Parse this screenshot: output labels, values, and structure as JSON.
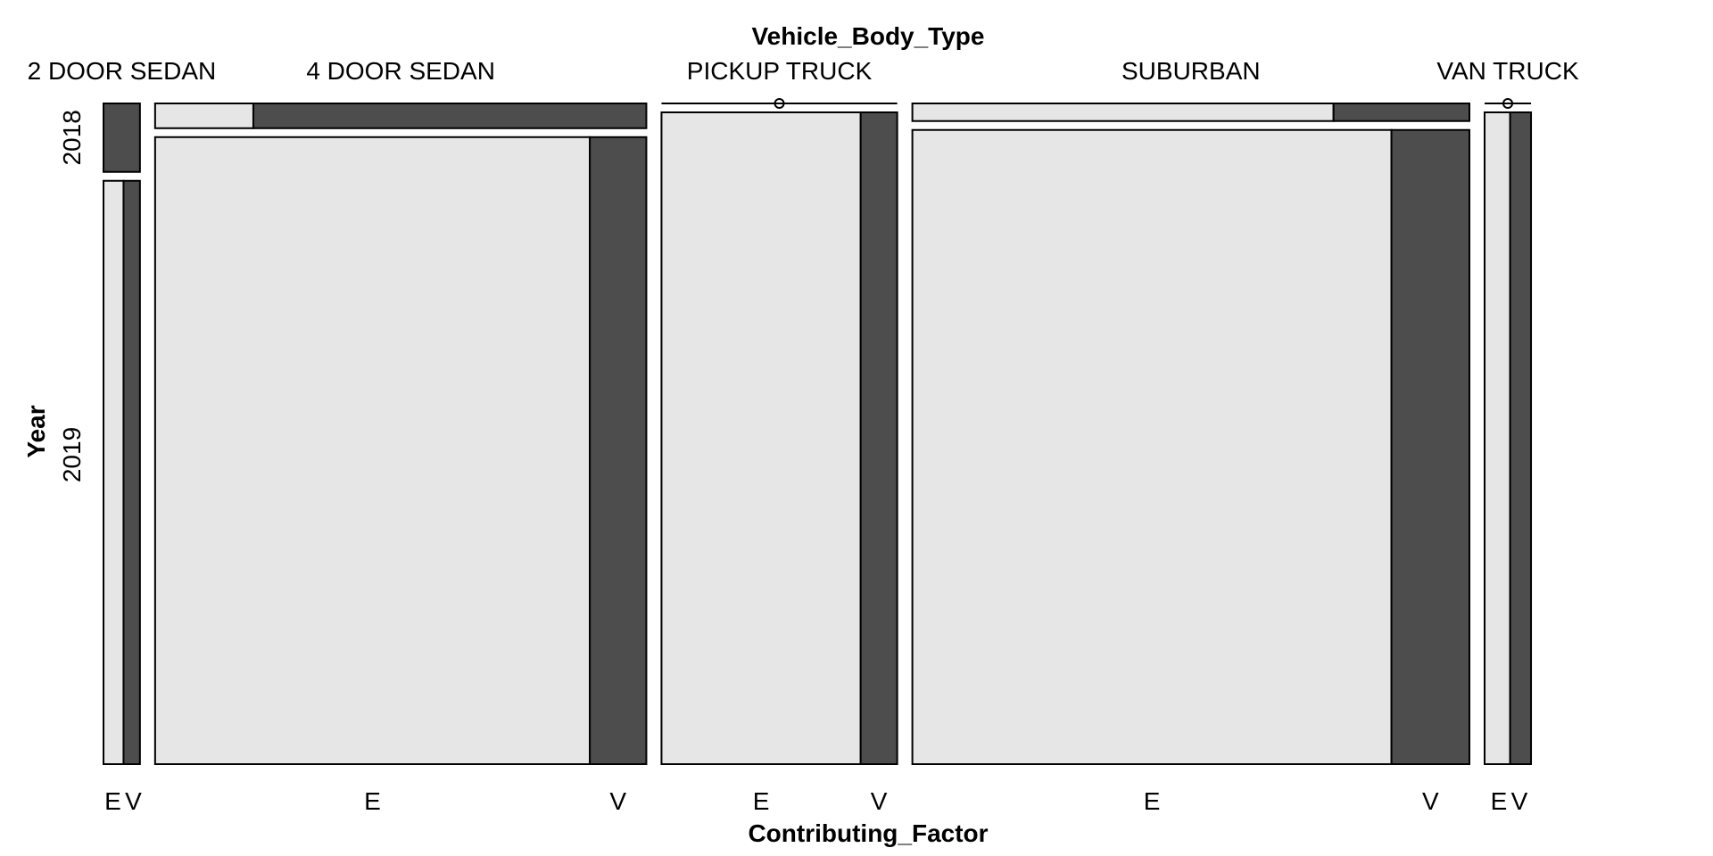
{
  "chart_data": {
    "type": "mosaic",
    "title": "Vehicle_Body_Type",
    "xlabel": "Contributing_Factor",
    "ylabel": "Year",
    "column_variable": "Vehicle_Body_Type",
    "row_variable": "Year",
    "fill_variable": "Contributing_Factor",
    "columns": [
      "2 DOOR SEDAN",
      "4 DOOR SEDAN",
      "PICKUP TRUCK",
      "SUBURBAN",
      "VAN TRUCK"
    ],
    "rows": [
      "2018",
      "2019"
    ],
    "fill_levels": [
      "E",
      "V"
    ],
    "colors": {
      "E": "#e6e6e6",
      "V": "#4d4d4d"
    },
    "column_shares": [
      0.0248,
      0.3343,
      0.1604,
      0.3791,
      0.0316
    ],
    "cells": [
      {
        "column": "2 DOOR SEDAN",
        "year": "2018",
        "row_share": 0.105,
        "e_share": 0.0,
        "bottom_ticks": []
      },
      {
        "column": "2 DOOR SEDAN",
        "year": "2019",
        "row_share": 0.895,
        "e_share": 0.55,
        "bottom_ticks": [
          "E",
          "V"
        ]
      },
      {
        "column": "4 DOOR SEDAN",
        "year": "2018",
        "row_share": 0.038,
        "e_share": 0.2,
        "bottom_ticks": []
      },
      {
        "column": "4 DOOR SEDAN",
        "year": "2019",
        "row_share": 0.962,
        "e_share": 0.885,
        "bottom_ticks": [
          "E",
          "V"
        ]
      },
      {
        "column": "PICKUP TRUCK",
        "year": "2018",
        "row_share": 0.0,
        "e_share": 0.5,
        "bottom_ticks": []
      },
      {
        "column": "PICKUP TRUCK",
        "year": "2019",
        "row_share": 1.0,
        "e_share": 0.845,
        "bottom_ticks": [
          "E",
          "V"
        ]
      },
      {
        "column": "SUBURBAN",
        "year": "2018",
        "row_share": 0.027,
        "e_share": 0.756,
        "bottom_ticks": []
      },
      {
        "column": "SUBURBAN",
        "year": "2019",
        "row_share": 0.973,
        "e_share": 0.86,
        "bottom_ticks": [
          "E",
          "V"
        ]
      },
      {
        "column": "VAN TRUCK",
        "year": "2018",
        "row_share": 0.0,
        "e_share": 0.5,
        "bottom_ticks": []
      },
      {
        "column": "VAN TRUCK",
        "year": "2019",
        "row_share": 1.0,
        "e_share": 0.55,
        "bottom_ticks": [
          "E",
          "V"
        ]
      }
    ],
    "grid": false,
    "legend": "none"
  }
}
